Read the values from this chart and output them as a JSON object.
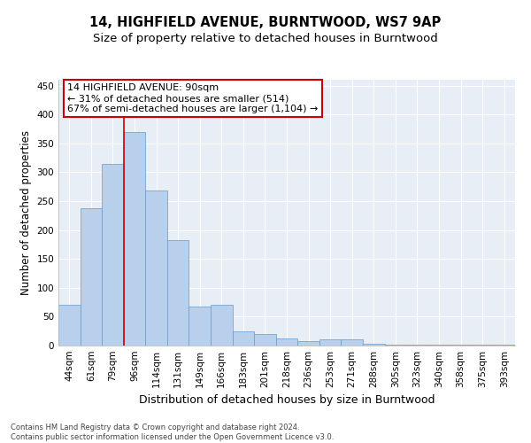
{
  "title": "14, HIGHFIELD AVENUE, BURNTWOOD, WS7 9AP",
  "subtitle": "Size of property relative to detached houses in Burntwood",
  "xlabel": "Distribution of detached houses by size in Burntwood",
  "ylabel": "Number of detached properties",
  "categories": [
    "44sqm",
    "61sqm",
    "79sqm",
    "96sqm",
    "114sqm",
    "131sqm",
    "149sqm",
    "166sqm",
    "183sqm",
    "201sqm",
    "218sqm",
    "236sqm",
    "253sqm",
    "271sqm",
    "288sqm",
    "305sqm",
    "323sqm",
    "340sqm",
    "358sqm",
    "375sqm",
    "393sqm"
  ],
  "values": [
    70,
    237,
    315,
    370,
    268,
    182,
    68,
    70,
    25,
    20,
    12,
    7,
    10,
    10,
    3,
    2,
    1,
    1,
    1,
    1,
    2
  ],
  "bar_color": "#b8d0eb",
  "bar_edge_color": "#6699cc",
  "background_color": "#e8eef6",
  "ylim": [
    0,
    460
  ],
  "yticks": [
    0,
    50,
    100,
    150,
    200,
    250,
    300,
    350,
    400,
    450
  ],
  "annotation_line1": "14 HIGHFIELD AVENUE: 90sqm",
  "annotation_line2": "← 31% of detached houses are smaller (514)",
  "annotation_line3": "67% of semi-detached houses are larger (1,104) →",
  "vline_bar_index": 2.5,
  "footer_line1": "Contains HM Land Registry data © Crown copyright and database right 2024.",
  "footer_line2": "Contains public sector information licensed under the Open Government Licence v3.0.",
  "title_fontsize": 10.5,
  "subtitle_fontsize": 9.5,
  "xlabel_fontsize": 9,
  "ylabel_fontsize": 8.5,
  "tick_fontsize": 7.5,
  "annotation_fontsize": 8,
  "footer_fontsize": 6
}
